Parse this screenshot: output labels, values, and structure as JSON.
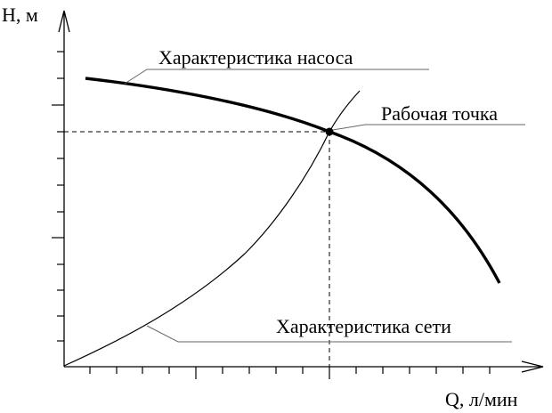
{
  "axes": {
    "y_label": "H, м",
    "x_label": "Q, л/мин"
  },
  "annotations": {
    "pump_curve": "Характеристика насоса",
    "operating_point": "Рабочая точка",
    "system_curve": "Характеристика сети"
  },
  "colors": {
    "ink": "#000000",
    "leader": "#666666",
    "background": "#ffffff"
  }
}
